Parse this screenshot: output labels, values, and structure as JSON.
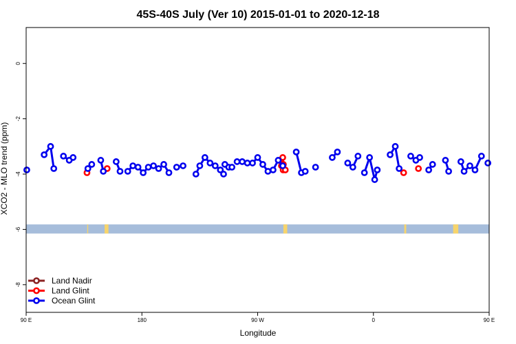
{
  "chart_data": {
    "type": "line",
    "title": "45S-40S July (Ver 10)   2015-01-01 to 2020-12-18",
    "xlabel": "Longitude",
    "ylabel": "XCO2 - MLO trend (ppm)",
    "xlim": [
      90,
      450
    ],
    "ylim": [
      -9,
      1.3
    ],
    "x_ticks": [
      {
        "value": 90,
        "label": "90 E"
      },
      {
        "value": 180,
        "label": "180"
      },
      {
        "value": 270,
        "label": "90 W"
      },
      {
        "value": 360,
        "label": "0"
      },
      {
        "value": 450,
        "label": "90 E"
      },
      {
        "value": 540,
        "label": "180"
      }
    ],
    "y_ticks": [
      {
        "value": 0,
        "label": "0"
      },
      {
        "value": -2,
        "label": "-2"
      },
      {
        "value": -4,
        "label": "-4"
      },
      {
        "value": -6,
        "label": "-6"
      },
      {
        "value": -8,
        "label": "-8"
      }
    ],
    "legend_position": "bottom-left",
    "land_band": {
      "y_top": -5.82,
      "y_bottom": -6.15,
      "ocean_color": "#a6bddb",
      "land_color": "#f7d46b",
      "land_spans": [
        [
          137.5,
          138.2
        ],
        [
          151,
          154
        ],
        [
          290,
          293
        ],
        [
          384,
          385.5
        ],
        [
          422,
          426
        ]
      ]
    },
    "series": [
      {
        "name": "Land Nadir",
        "color": "#8b2323",
        "segments": []
      },
      {
        "name": "Land Glint",
        "color": "#ff0000",
        "segments": [
          [
            [
              137.3,
              -3.95
            ]
          ],
          [
            [
              153,
              -3.8
            ]
          ],
          [
            [
              288.5,
              -3.7
            ],
            [
              289.5,
              -3.4
            ],
            [
              290,
              -3.65
            ],
            [
              289.8,
              -3.85
            ],
            [
              291.5,
              -3.85
            ]
          ],
          [
            [
              383.5,
              -3.95
            ]
          ],
          [
            [
              395,
              -3.8
            ]
          ]
        ]
      },
      {
        "name": "Ocean Glint",
        "color": "#0000ee",
        "segments": [
          [
            [
              90.5,
              -3.85
            ]
          ],
          [
            [
              104,
              -3.3
            ],
            [
              109,
              -3.0
            ],
            [
              111.5,
              -3.8
            ]
          ],
          [
            [
              119,
              -3.35
            ],
            [
              123.5,
              -3.5
            ],
            [
              126.5,
              -3.4
            ]
          ],
          [
            [
              138,
              -3.8
            ],
            [
              141,
              -3.65
            ]
          ],
          [
            [
              148,
              -3.5
            ],
            [
              150,
              -3.9
            ]
          ],
          [
            [
              160,
              -3.55
            ],
            [
              163,
              -3.9
            ]
          ],
          [
            [
              169,
              -3.9
            ],
            [
              173,
              -3.7
            ],
            [
              177,
              -3.75
            ],
            [
              181,
              -3.95
            ],
            [
              185,
              -3.75
            ],
            [
              189,
              -3.7
            ],
            [
              193,
              -3.8
            ],
            [
              197,
              -3.65
            ],
            [
              201,
              -3.95
            ]
          ],
          [
            [
              207,
              -3.75
            ],
            [
              212,
              -3.7
            ]
          ],
          [
            [
              222,
              -4.0
            ],
            [
              225,
              -3.7
            ],
            [
              229,
              -3.4
            ],
            [
              233,
              -3.6
            ],
            [
              237,
              -3.7
            ],
            [
              241,
              -3.85
            ],
            [
              243.5,
              -4.0
            ]
          ],
          [
            [
              244.5,
              -3.65
            ],
            [
              247.5,
              -3.75
            ],
            [
              250,
              -3.75
            ]
          ],
          [
            [
              254,
              -3.55
            ],
            [
              258,
              -3.55
            ],
            [
              262,
              -3.6
            ],
            [
              266,
              -3.6
            ],
            [
              270,
              -3.4
            ],
            [
              274,
              -3.65
            ],
            [
              278,
              -3.9
            ],
            [
              282,
              -3.85
            ],
            [
              286,
              -3.5
            ],
            [
              289.5,
              -3.7
            ]
          ],
          [
            [
              300,
              -3.2
            ],
            [
              304,
              -3.95
            ],
            [
              307,
              -3.9
            ]
          ],
          [
            [
              315,
              -3.75
            ]
          ],
          [
            [
              328,
              -3.4
            ],
            [
              332,
              -3.2
            ]
          ],
          [
            [
              340,
              -3.6
            ],
            [
              344,
              -3.75
            ],
            [
              348,
              -3.35
            ]
          ],
          [
            [
              353,
              -3.95
            ],
            [
              357,
              -3.4
            ],
            [
              361,
              -4.2
            ],
            [
              363,
              -3.85
            ]
          ],
          [
            [
              373,
              -3.3
            ],
            [
              377,
              -3.0
            ],
            [
              380,
              -3.8
            ]
          ],
          [
            [
              389,
              -3.35
            ],
            [
              393,
              -3.5
            ],
            [
              396,
              -3.4
            ]
          ],
          [
            [
              403,
              -3.85
            ],
            [
              406,
              -3.65
            ]
          ],
          [
            [
              416,
              -3.5
            ],
            [
              418.5,
              -3.9
            ]
          ],
          [
            [
              428,
              -3.55
            ],
            [
              430.5,
              -3.9
            ],
            [
              435,
              -3.7
            ],
            [
              439,
              -3.85
            ],
            [
              444,
              -3.35
            ]
          ],
          [
            [
              449,
              -3.6
            ]
          ]
        ]
      }
    ]
  }
}
